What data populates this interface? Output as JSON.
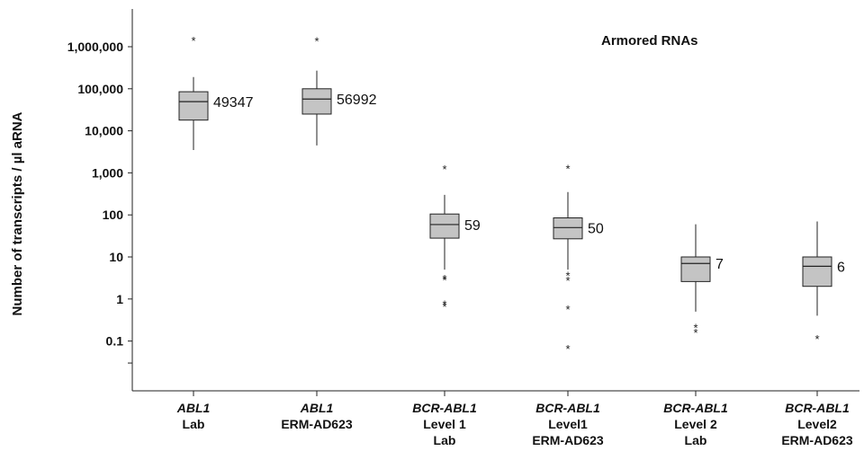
{
  "chart_data": {
    "type": "box",
    "ylabel": "Number of transcripts / µl aRNA",
    "annotation": "Armored RNAs",
    "yscale": "log",
    "ylim": [
      0.02,
      5000000
    ],
    "yticks": [
      {
        "value": 1000000,
        "label": "1,000,000"
      },
      {
        "value": 100000,
        "label": "100,000"
      },
      {
        "value": 10000,
        "label": "10,000"
      },
      {
        "value": 1000,
        "label": "1,000"
      },
      {
        "value": 100,
        "label": "100"
      },
      {
        "value": 10,
        "label": "10"
      },
      {
        "value": 1,
        "label": "1"
      },
      {
        "value": 0.1,
        "label": "0.1"
      },
      {
        "value": 0.03,
        "label": ""
      }
    ],
    "box_color": "#c4c4c4",
    "categories": [
      {
        "lines": [
          {
            "text": "ABL1",
            "italic": true
          },
          {
            "text": "Lab",
            "italic": false
          }
        ],
        "min": 3500,
        "q1": 18000,
        "median": 49347,
        "q3": 85000,
        "max": 190000,
        "median_label": "49347",
        "outliers": [
          1500000
        ]
      },
      {
        "lines": [
          {
            "text": "ABL1",
            "italic": true
          },
          {
            "text": "ERM-AD623",
            "italic": false
          }
        ],
        "min": 4500,
        "q1": 25000,
        "median": 56992,
        "q3": 100000,
        "max": 270000,
        "median_label": "56992",
        "outliers": [
          1450000
        ]
      },
      {
        "lines": [
          {
            "text": "BCR-ABL1",
            "italic": true
          },
          {
            "text": "Level 1",
            "italic": false
          },
          {
            "text": "Lab",
            "italic": false
          }
        ],
        "min": 5,
        "q1": 28,
        "median": 59,
        "q3": 105,
        "max": 300,
        "median_label": "59",
        "outliers": [
          1300,
          3.2,
          3.0,
          0.8,
          0.7
        ]
      },
      {
        "lines": [
          {
            "text": "BCR-ABL1",
            "italic": true
          },
          {
            "text": "Level1",
            "italic": false
          },
          {
            "text": "ERM-AD623",
            "italic": false
          }
        ],
        "min": 5,
        "q1": 27,
        "median": 50,
        "q3": 85,
        "max": 350,
        "median_label": "50",
        "outliers": [
          1350,
          3.8,
          2.9,
          0.6,
          0.07
        ]
      },
      {
        "lines": [
          {
            "text": "BCR-ABL1",
            "italic": true
          },
          {
            "text": "Level 2",
            "italic": false
          },
          {
            "text": "Lab",
            "italic": false
          }
        ],
        "min": 0.5,
        "q1": 2.6,
        "median": 7,
        "q3": 10,
        "max": 60,
        "median_label": "7",
        "outliers": [
          0.22,
          0.17
        ]
      },
      {
        "lines": [
          {
            "text": "BCR-ABL1",
            "italic": true
          },
          {
            "text": "Level2",
            "italic": false
          },
          {
            "text": "ERM-AD623",
            "italic": false
          }
        ],
        "min": 0.4,
        "q1": 2.0,
        "median": 6,
        "q3": 10,
        "max": 70,
        "median_label": "6",
        "outliers": [
          0.12
        ]
      }
    ]
  }
}
